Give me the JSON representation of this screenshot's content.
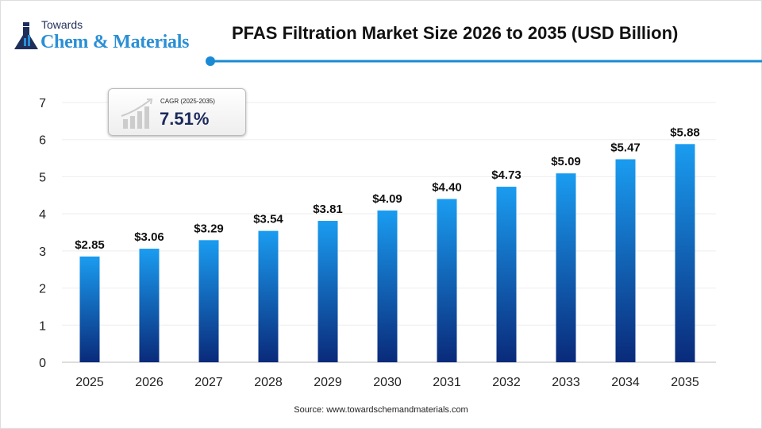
{
  "logo": {
    "line1": "Towards",
    "line2": "Chem & Materials"
  },
  "title": "PFAS Filtration Market Size 2026 to 2035 (USD Billion)",
  "cagr": {
    "label": "CAGR (2025-2035)",
    "value": "7.51%"
  },
  "source": "Source: www.towardschemandmaterials.com",
  "colors": {
    "bar_top": "#1a9cf0",
    "bar_bottom": "#0a2a7a",
    "accent": "#1a8ad4"
  },
  "chart_data": {
    "type": "bar",
    "title": "PFAS Filtration Market Size 2026 to 2035 (USD Billion)",
    "categories": [
      "2025",
      "2026",
      "2027",
      "2028",
      "2029",
      "2030",
      "2031",
      "2032",
      "2033",
      "2034",
      "2035"
    ],
    "values": [
      2.85,
      3.06,
      3.29,
      3.54,
      3.81,
      4.09,
      4.4,
      4.73,
      5.09,
      5.47,
      5.88
    ],
    "data_labels": [
      "$2.85",
      "$3.06",
      "$3.29",
      "$3.54",
      "$3.81",
      "$4.09",
      "$4.40",
      "$4.73",
      "$5.09",
      "$5.47",
      "$5.88"
    ],
    "yticks": [
      0,
      1,
      2,
      3,
      4,
      5,
      6,
      7
    ],
    "ylim": [
      0,
      7
    ],
    "grid": true,
    "xlabel": "",
    "ylabel": ""
  }
}
